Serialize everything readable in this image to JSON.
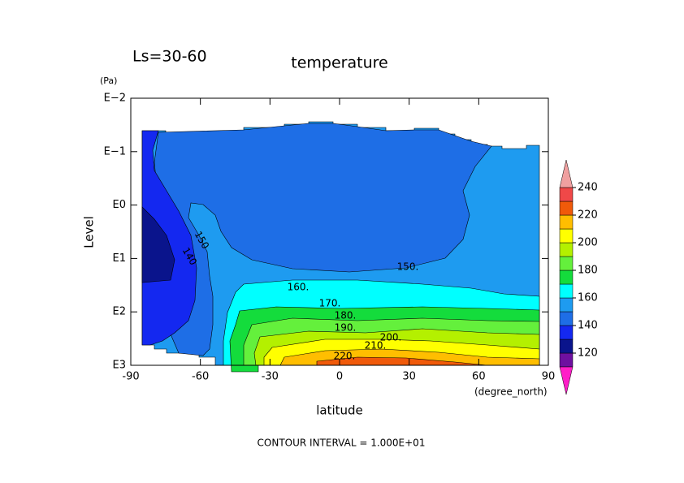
{
  "chart_data": {
    "type": "contour",
    "title": "temperature",
    "subtitle": "Ls=30-60",
    "xlabel": "latitude",
    "xunit": "(degree_north)",
    "ylabel": "Level",
    "yunit": "(Pa)",
    "footer": "CONTOUR INTERVAL = 1.000E+01",
    "xlim": [
      -90,
      90
    ],
    "xticks": [
      -90,
      -60,
      -30,
      0,
      30,
      60,
      90
    ],
    "ylim": [
      1000,
      0.01
    ],
    "log_y": true,
    "yticks": [
      {
        "value": 1000,
        "label": "E3"
      },
      {
        "value": 100,
        "label": "E2"
      },
      {
        "value": 10,
        "label": "E1"
      },
      {
        "value": 1,
        "label": "E0"
      },
      {
        "value": 0.1,
        "label": "E−1"
      },
      {
        "value": 0.01,
        "label": "E−2"
      }
    ],
    "levels": [
      110,
      120,
      130,
      140,
      150,
      160,
      170,
      180,
      190,
      200,
      210,
      220,
      230,
      240
    ],
    "colors": [
      "#ff1ec8",
      "#6e10a0",
      "#0a148c",
      "#1428f0",
      "#1e6ee6",
      "#1e9bf0",
      "#00ffff",
      "#14dc3c",
      "#64f03c",
      "#b4f000",
      "#ffff00",
      "#ffbe00",
      "#f05a0a",
      "#f04848",
      "#f0a0a0"
    ],
    "colorbar_ticks": [
      120,
      140,
      160,
      180,
      200,
      220,
      240
    ],
    "contour_labels": [
      {
        "value": 150,
        "label": "150."
      },
      {
        "value": 150,
        "label": "150"
      },
      {
        "value": 140,
        "label": "140"
      },
      {
        "value": 160,
        "label": "160."
      },
      {
        "value": 170,
        "label": "170."
      },
      {
        "value": 180,
        "label": "180."
      },
      {
        "value": 190,
        "label": "190."
      },
      {
        "value": 200,
        "label": "200."
      },
      {
        "value": 210,
        "label": "210."
      },
      {
        "value": 220,
        "label": "220."
      }
    ]
  }
}
